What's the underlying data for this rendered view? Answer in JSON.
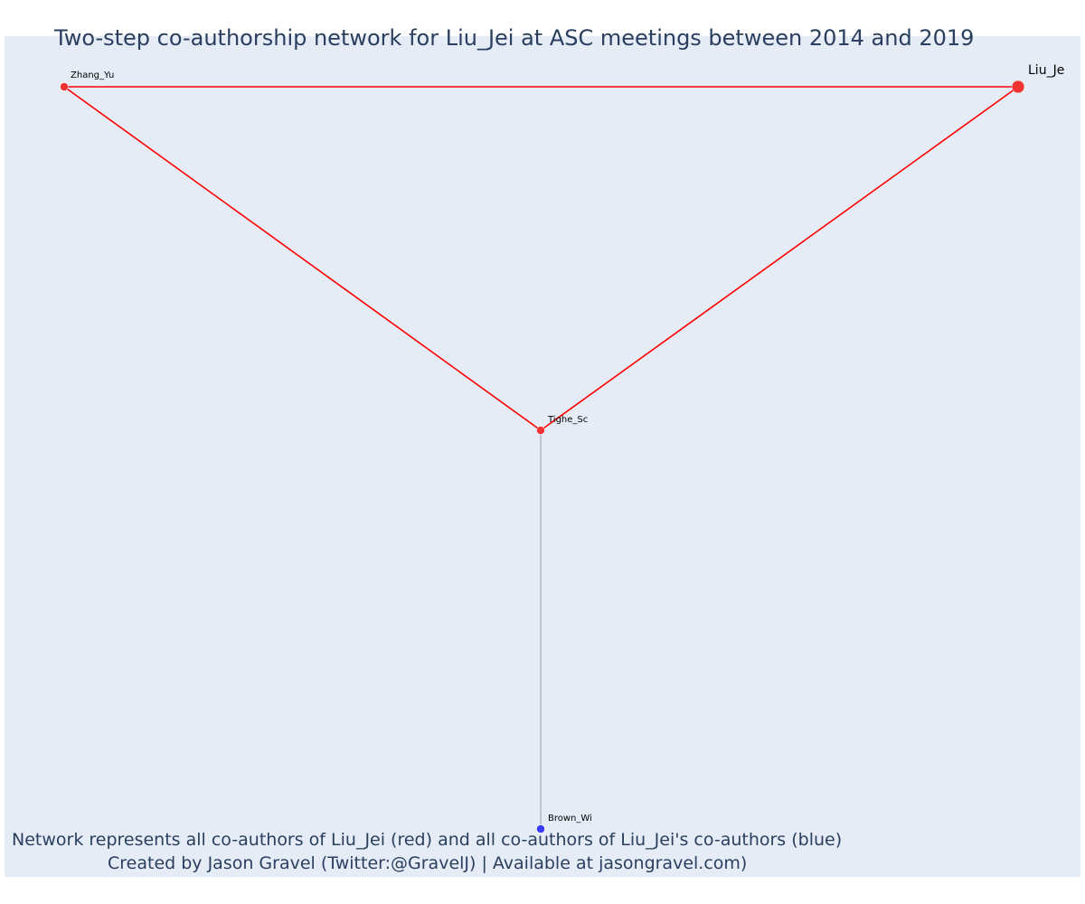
{
  "title": "Two-step co-authorship network for Liu_Jei at ASC meetings between 2014 and 2019",
  "annotation": {
    "line1": "Network represents all co-authors of Liu_Jei (red) and all co-authors of Liu_Jei's co-authors (blue)",
    "line2": "Created by Jason Gravel (Twitter:@GravelJ) | Available at jasongravel.com)"
  },
  "colors": {
    "background": "#e5ecf6",
    "direct": "#ff0000",
    "direct_node": "#ef3333",
    "secondary_node": "#3b3bff",
    "secondary_edge": "#888888"
  },
  "network": {
    "nodes": [
      {
        "id": "Liu_Je",
        "label": "Liu_Je",
        "group": "focal"
      },
      {
        "id": "Zhang_Yu",
        "label": "Zhang_Yu",
        "group": "direct"
      },
      {
        "id": "Tighe_Sc",
        "label": "Tighe_Sc",
        "group": "direct"
      },
      {
        "id": "Brown_Wi",
        "label": "Brown_Wi",
        "group": "secondary"
      }
    ],
    "edges": [
      {
        "source": "Zhang_Yu",
        "target": "Liu_Je",
        "type": "direct"
      },
      {
        "source": "Zhang_Yu",
        "target": "Tighe_Sc",
        "type": "direct"
      },
      {
        "source": "Tighe_Sc",
        "target": "Liu_Je",
        "type": "direct"
      },
      {
        "source": "Tighe_Sc",
        "target": "Brown_Wi",
        "type": "secondary"
      }
    ]
  }
}
